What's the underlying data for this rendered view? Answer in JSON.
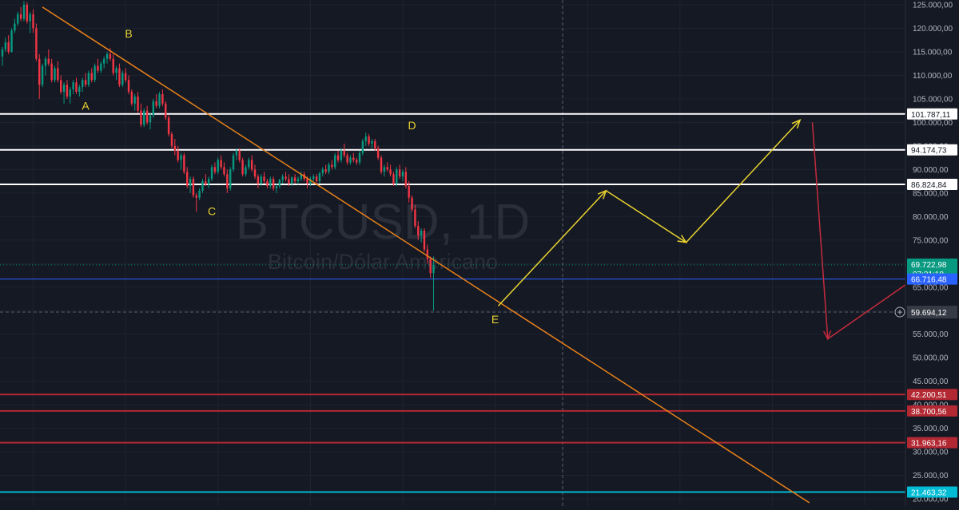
{
  "window": {
    "symbol": "BTCUSD, 1D",
    "description": "Bitcoin/Dólar Americano"
  },
  "chart_data": {
    "type": "candlestick",
    "yaxis": {
      "ylim": [
        18500,
        126000
      ],
      "ticks": [
        "125.000,00",
        "120.000,00",
        "115.000,00",
        "110.000,00",
        "105.000,00",
        "100.000,00",
        "95.000,00",
        "90.000,00",
        "85.000,00",
        "80.000,00",
        "75.000,00",
        "70.000,00",
        "65.000,00",
        "60.000,00",
        "55.000,00",
        "50.000,00",
        "45.000,00",
        "40.000,00",
        "35.000,00",
        "30.000,00",
        "25.000,00",
        "20.000,00"
      ]
    },
    "horizontal_levels": [
      {
        "value": 101787.11,
        "label": "101.787,11",
        "color": "#ffffff"
      },
      {
        "value": 94174.73,
        "label": "94.174,73",
        "color": "#ffffff"
      },
      {
        "value": 86824.84,
        "label": "86.824,84",
        "color": "#ffffff"
      },
      {
        "value": 42200.51,
        "label": "42.200,51",
        "color": "#b22833"
      },
      {
        "value": 38700.56,
        "label": "38.700,56",
        "color": "#b22833"
      },
      {
        "value": 31963.16,
        "label": "31.963,16",
        "color": "#b22833"
      },
      {
        "value": 21463.32,
        "label": "21.463,32",
        "color": "#00bcd4"
      }
    ],
    "last_price": {
      "value": 69722.98,
      "label": "69.722,98",
      "countdown": "07:21:18",
      "color": "#089981"
    },
    "reference_price": {
      "value": 66716.48,
      "label": "66.716,48",
      "color": "#2962ff"
    },
    "crosshair": {
      "value": 59694.12,
      "label": "59.694,12"
    },
    "wave_labels": [
      {
        "text": "A",
        "x": 27,
        "y": 102700
      },
      {
        "text": "B",
        "x": 41,
        "y": 118000
      },
      {
        "text": "C",
        "x": 68,
        "y": 80300
      },
      {
        "text": "D",
        "x": 133,
        "y": 98500
      },
      {
        "text": "E",
        "x": 160,
        "y": 57300
      }
    ],
    "trendline": {
      "color": "#e8811a",
      "points": [
        {
          "x": 13,
          "y": 124500
        },
        {
          "x": 262,
          "y": 19200
        }
      ]
    },
    "projections": [
      {
        "color": "#e8d230",
        "points": [
          {
            "x": 161,
            "y": 61000
          },
          {
            "x": 196,
            "y": 85500
          },
          {
            "x": 222,
            "y": 74500
          },
          {
            "x": 259,
            "y": 100500
          }
        ]
      },
      {
        "color": "#c42b3d",
        "points": [
          {
            "x": 263,
            "y": 100000
          },
          {
            "x": 268,
            "y": 54000
          },
          {
            "x": 329,
            "y": 81800
          },
          {
            "x": 346,
            "y": 32500
          }
        ]
      }
    ],
    "candles": [
      [
        0,
        114000,
        116000,
        112000,
        115500
      ],
      [
        1,
        115500,
        118000,
        115000,
        117000
      ],
      [
        2,
        117000,
        118500,
        114500,
        115000
      ],
      [
        3,
        115000,
        120000,
        114800,
        119500
      ],
      [
        4,
        119500,
        122000,
        119000,
        121000
      ],
      [
        5,
        121000,
        123500,
        120500,
        123000
      ],
      [
        6,
        123000,
        124500,
        121500,
        122000
      ],
      [
        7,
        122000,
        125800,
        121500,
        125000
      ],
      [
        8,
        125000,
        125500,
        121000,
        121500
      ],
      [
        9,
        121500,
        123500,
        119000,
        123000
      ],
      [
        10,
        123000,
        124000,
        119000,
        120000
      ],
      [
        11,
        120000,
        121000,
        113000,
        113500
      ],
      [
        12,
        113500,
        114500,
        105000,
        108000
      ],
      [
        13,
        108000,
        112500,
        107500,
        112000
      ],
      [
        14,
        112000,
        114000,
        110000,
        113500
      ],
      [
        15,
        113500,
        115500,
        112000,
        112500
      ],
      [
        16,
        112500,
        113500,
        108500,
        109000
      ],
      [
        17,
        109000,
        112000,
        108500,
        111500
      ],
      [
        18,
        111500,
        113000,
        108500,
        109000
      ],
      [
        19,
        109000,
        110000,
        106000,
        106500
      ],
      [
        20,
        106500,
        108500,
        104000,
        108000
      ],
      [
        21,
        108000,
        109000,
        105000,
        105500
      ],
      [
        22,
        105500,
        107500,
        104000,
        107000
      ],
      [
        23,
        107000,
        109000,
        106000,
        108500
      ],
      [
        24,
        108500,
        109500,
        106000,
        106500
      ],
      [
        25,
        106500,
        108000,
        105500,
        107500
      ],
      [
        26,
        107500,
        109500,
        106500,
        109000
      ],
      [
        27,
        109000,
        110500,
        107500,
        108000
      ],
      [
        28,
        108000,
        111000,
        107500,
        110500
      ],
      [
        29,
        110500,
        111500,
        108500,
        109000
      ],
      [
        30,
        109000,
        112500,
        108500,
        112000
      ],
      [
        31,
        112000,
        113500,
        110500,
        111000
      ],
      [
        32,
        111000,
        113000,
        110500,
        112500
      ],
      [
        33,
        112500,
        114000,
        111500,
        113500
      ],
      [
        34,
        113500,
        115000,
        112500,
        114500
      ],
      [
        35,
        114500,
        115800,
        113000,
        113500
      ],
      [
        36,
        113500,
        114500,
        110000,
        110500
      ],
      [
        37,
        110500,
        112000,
        109000,
        111500
      ],
      [
        38,
        111500,
        112500,
        107500,
        108000
      ],
      [
        39,
        108000,
        111000,
        107500,
        110500
      ],
      [
        40,
        110500,
        111500,
        108500,
        109000
      ],
      [
        41,
        109000,
        110000,
        106000,
        106500
      ],
      [
        42,
        106500,
        107000,
        103500,
        104000
      ],
      [
        43,
        104000,
        106000,
        102500,
        105500
      ],
      [
        44,
        105500,
        106500,
        102000,
        102500
      ],
      [
        45,
        102500,
        104000,
        99000,
        99500
      ],
      [
        46,
        99500,
        103000,
        99000,
        102500
      ],
      [
        47,
        102500,
        103500,
        99500,
        100000
      ],
      [
        48,
        100000,
        102000,
        98500,
        101500
      ],
      [
        49,
        101500,
        105000,
        101000,
        104500
      ],
      [
        50,
        104500,
        106000,
        103000,
        103500
      ],
      [
        51,
        103500,
        106500,
        103000,
        106000
      ],
      [
        52,
        106000,
        107000,
        103500,
        104000
      ],
      [
        53,
        104000,
        104500,
        100500,
        101000
      ],
      [
        54,
        101000,
        101500,
        97000,
        97500
      ],
      [
        55,
        97500,
        98000,
        94500,
        95000
      ],
      [
        56,
        95000,
        96500,
        93000,
        94000
      ],
      [
        57,
        94000,
        95000,
        91500,
        92000
      ],
      [
        58,
        92000,
        93500,
        90000,
        93000
      ],
      [
        59,
        93000,
        93500,
        89000,
        89500
      ],
      [
        60,
        89500,
        90500,
        86000,
        86500
      ],
      [
        61,
        86500,
        88500,
        85000,
        88000
      ],
      [
        62,
        88000,
        88500,
        84000,
        84500
      ],
      [
        63,
        84500,
        85000,
        81000,
        84000
      ],
      [
        64,
        84000,
        86000,
        83500,
        85500
      ],
      [
        65,
        85500,
        88000,
        85000,
        87500
      ],
      [
        66,
        87500,
        89000,
        86500,
        86800
      ],
      [
        67,
        86800,
        88500,
        86000,
        88000
      ],
      [
        68,
        88000,
        91000,
        87500,
        90500
      ],
      [
        69,
        90500,
        91500,
        89000,
        89500
      ],
      [
        70,
        89500,
        92500,
        89000,
        92000
      ],
      [
        71,
        92000,
        93000,
        90000,
        90500
      ],
      [
        72,
        90500,
        91500,
        88500,
        89000
      ],
      [
        73,
        89000,
        90000,
        85000,
        86000
      ],
      [
        74,
        86000,
        90500,
        85500,
        90000
      ],
      [
        75,
        90000,
        93500,
        89500,
        93000
      ],
      [
        76,
        93000,
        94500,
        92000,
        94000
      ],
      [
        77,
        94000,
        94500,
        91500,
        92000
      ],
      [
        78,
        92000,
        92500,
        88500,
        89000
      ],
      [
        79,
        89000,
        91000,
        88500,
        90500
      ],
      [
        80,
        90500,
        92500,
        90000,
        92000
      ],
      [
        81,
        92000,
        93000,
        89500,
        90000
      ],
      [
        82,
        90000,
        91000,
        88000,
        88500
      ],
      [
        83,
        88500,
        89000,
        86000,
        87000
      ],
      [
        84,
        87000,
        89000,
        86500,
        88500
      ],
      [
        85,
        88500,
        89500,
        87000,
        87500
      ],
      [
        86,
        87500,
        88000,
        86000,
        86500
      ],
      [
        87,
        86500,
        88500,
        86000,
        88000
      ],
      [
        88,
        88000,
        88500,
        85500,
        86000
      ],
      [
        89,
        86000,
        87000,
        85000,
        86500
      ],
      [
        90,
        86500,
        88000,
        86000,
        87800
      ],
      [
        91,
        87800,
        89000,
        87000,
        88500
      ],
      [
        92,
        88500,
        89500,
        87500,
        88000
      ],
      [
        93,
        88000,
        89000,
        86500,
        87000
      ],
      [
        94,
        87000,
        88500,
        86500,
        88300
      ],
      [
        95,
        88300,
        89000,
        87000,
        87500
      ],
      [
        96,
        87500,
        88500,
        86800,
        88000
      ],
      [
        97,
        88000,
        89500,
        87500,
        89000
      ],
      [
        98,
        89000,
        89500,
        87500,
        88000
      ],
      [
        99,
        88000,
        88500,
        86000,
        87000
      ],
      [
        100,
        87000,
        88500,
        86500,
        88000
      ],
      [
        101,
        88000,
        89000,
        87500,
        88500
      ],
      [
        102,
        88500,
        89000,
        87000,
        87500
      ],
      [
        103,
        87500,
        89500,
        87000,
        89200
      ],
      [
        104,
        89200,
        90500,
        88500,
        90000
      ],
      [
        105,
        90000,
        91000,
        89000,
        89500
      ],
      [
        106,
        89500,
        91500,
        89000,
        91000
      ],
      [
        107,
        91000,
        92000,
        90000,
        90500
      ],
      [
        108,
        90500,
        93500,
        90000,
        93000
      ],
      [
        109,
        93000,
        94000,
        91500,
        92000
      ],
      [
        110,
        92000,
        94500,
        91500,
        94000
      ],
      [
        111,
        94000,
        95500,
        92500,
        93000
      ],
      [
        112,
        93000,
        93500,
        91000,
        91500
      ],
      [
        113,
        91500,
        93000,
        91000,
        92500
      ],
      [
        114,
        92500,
        93500,
        91500,
        92000
      ],
      [
        115,
        92000,
        92500,
        91000,
        91500
      ],
      [
        116,
        91500,
        94000,
        91000,
        93500
      ],
      [
        117,
        93500,
        96500,
        93000,
        96000
      ],
      [
        118,
        96000,
        97800,
        95000,
        97000
      ],
      [
        119,
        97000,
        97500,
        95000,
        95500
      ],
      [
        120,
        95500,
        96500,
        94500,
        96000
      ],
      [
        121,
        96000,
        96500,
        94000,
        94500
      ],
      [
        122,
        94500,
        95000,
        92000,
        92500
      ],
      [
        123,
        92500,
        93000,
        89000,
        89500
      ],
      [
        124,
        89500,
        91000,
        88500,
        90500
      ],
      [
        125,
        90500,
        91500,
        89500,
        90000
      ],
      [
        126,
        90000,
        91000,
        88500,
        89000
      ],
      [
        127,
        89000,
        89500,
        86500,
        87000
      ],
      [
        128,
        87000,
        90500,
        86500,
        90000
      ],
      [
        129,
        90000,
        91000,
        88000,
        88500
      ],
      [
        130,
        88500,
        90000,
        87500,
        89500
      ],
      [
        131,
        89500,
        90500,
        86000,
        86500
      ],
      [
        132,
        86500,
        87500,
        83000,
        84000
      ],
      [
        133,
        84000,
        84500,
        81000,
        81500
      ],
      [
        134,
        81500,
        82500,
        77500,
        78000
      ],
      [
        135,
        78000,
        79000,
        75000,
        76000
      ],
      [
        136,
        76000,
        77500,
        74500,
        77000
      ],
      [
        137,
        77000,
        77500,
        72500,
        73000
      ],
      [
        138,
        73000,
        74000,
        70000,
        71000
      ],
      [
        139,
        71000,
        71500,
        67000,
        68000
      ],
      [
        140,
        68000,
        71500,
        60000,
        69722.98
      ]
    ],
    "visible_bars": [
      0,
      294
    ]
  }
}
